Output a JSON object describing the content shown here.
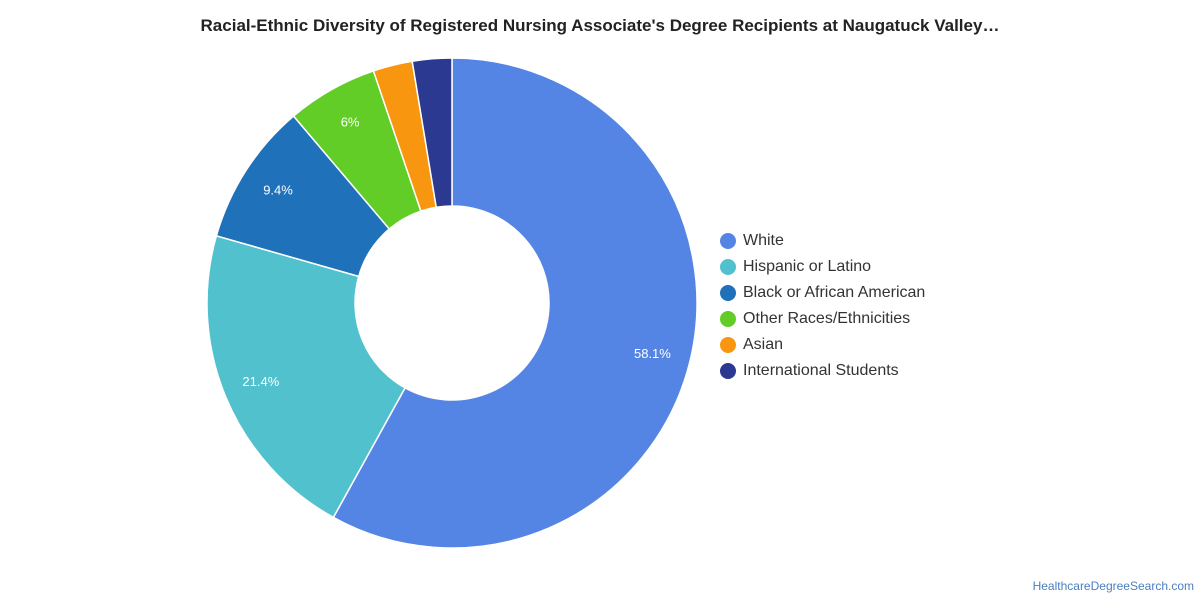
{
  "chart_data": {
    "type": "pie",
    "variant": "donut",
    "title": "Racial-Ethnic Diversity of Registered Nursing Associate's Degree Recipients at Naugatuck Valley…",
    "legend_position": "right",
    "slices": [
      {
        "label": "White",
        "value": 58.1,
        "value_label": "58.1%",
        "color": "#5585e4"
      },
      {
        "label": "Hispanic or Latino",
        "value": 21.4,
        "value_label": "21.4%",
        "color": "#50c1cd"
      },
      {
        "label": "Black or African American",
        "value": 9.4,
        "value_label": "9.4%",
        "color": "#1f71ba"
      },
      {
        "label": "Other Races/Ethnicities",
        "value": 6.0,
        "value_label": "6%",
        "color": "#62cd27"
      },
      {
        "label": "Asian",
        "value": 2.6,
        "value_label": "",
        "color": "#f8960f"
      },
      {
        "label": "International Students",
        "value": 2.6,
        "value_label": "",
        "color": "#2b3990"
      }
    ]
  },
  "footer": {
    "source_link": "HealthcareDegreeSearch.com"
  }
}
